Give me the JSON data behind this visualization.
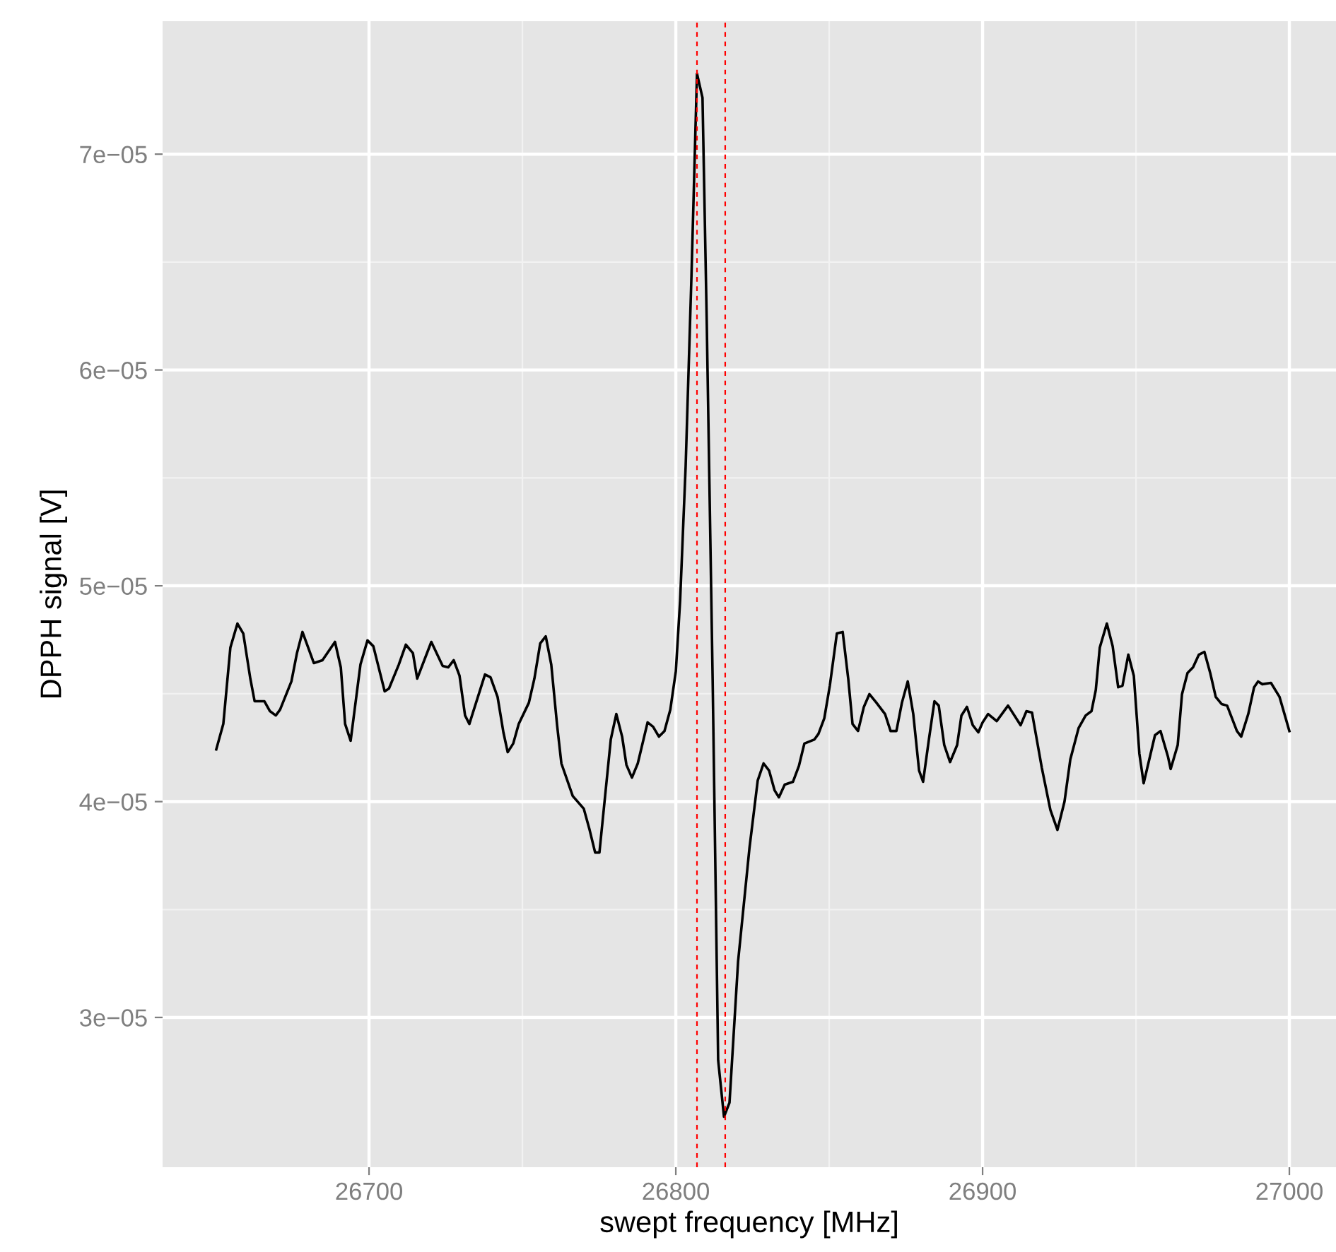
{
  "chart_data": {
    "type": "line",
    "xlabel": "swept frequency [MHz]",
    "ylabel": "DPPH signal [V]",
    "xlim": [
      26632.7,
      27015.2
    ],
    "ylim": [
      2.306e-05,
      7.616e-05
    ],
    "xticks": [
      26700,
      26800,
      26900,
      27000
    ],
    "yticks": [
      {
        "value": 3e-05,
        "label": "3e−05"
      },
      {
        "value": 4e-05,
        "label": "4e−05"
      },
      {
        "value": 5e-05,
        "label": "5e−05"
      },
      {
        "value": 6e-05,
        "label": "6e−05"
      },
      {
        "value": 7e-05,
        "label": "7e−05"
      }
    ],
    "grid": true,
    "marker": "none",
    "line_style": "solid",
    "ref_lines": [
      {
        "axis": "x",
        "value": 26806.9,
        "color": "#ff0000",
        "line_style": "dashed"
      },
      {
        "axis": "x",
        "value": 26816.1,
        "color": "#ff0000",
        "line_style": "dashed"
      }
    ],
    "series": [
      {
        "color": "#000000",
        "x": [
          26650.2,
          26652.5,
          26654.8,
          26657.1,
          26659.0,
          26661.3,
          26662.7,
          26665.9,
          26667.7,
          26669.6,
          26671.0,
          26674.7,
          26676.5,
          26678.3,
          26682.0,
          26684.8,
          26688.9,
          26690.8,
          26692.2,
          26694.0,
          26697.2,
          26699.5,
          26701.4,
          26705.1,
          26706.5,
          26709.7,
          26712.0,
          26714.3,
          26715.7,
          26720.3,
          26724.0,
          26725.8,
          26727.6,
          26729.5,
          26731.3,
          26732.7,
          26737.8,
          26739.6,
          26741.9,
          26743.8,
          26745.2,
          26747.0,
          26748.8,
          26752.1,
          26753.9,
          26755.8,
          26757.6,
          26759.4,
          26761.3,
          26762.7,
          26766.4,
          26770.0,
          26771.9,
          26773.7,
          26775.1,
          26778.8,
          26780.6,
          26782.5,
          26783.9,
          26785.7,
          26787.6,
          26790.8,
          26792.6,
          26794.5,
          26796.3,
          26798.2,
          26800.0,
          26801.4,
          26803.2,
          26805.1,
          26806.9,
          26808.7,
          26810.1,
          26812.0,
          26813.8,
          26815.7,
          26817.5,
          26820.3,
          26824.0,
          26826.7,
          26828.6,
          26830.4,
          26832.2,
          26833.6,
          26835.5,
          26838.2,
          26840.1,
          26841.9,
          26845.2,
          26846.5,
          26848.4,
          26850.2,
          26852.5,
          26854.4,
          26856.2,
          26857.6,
          26859.4,
          26861.3,
          26863.1,
          26865.4,
          26868.2,
          26870.0,
          26871.9,
          26873.7,
          26875.6,
          26877.4,
          26879.3,
          26880.6,
          26882.5,
          26884.3,
          26885.7,
          26887.5,
          26889.4,
          26891.7,
          26893.1,
          26894.9,
          26896.8,
          26898.6,
          26900.0,
          26901.8,
          26904.6,
          26908.3,
          26912.4,
          26914.3,
          26916.1,
          26919.3,
          26922.1,
          26924.4,
          26926.7,
          26928.6,
          26931.3,
          26933.6,
          26935.5,
          26936.9,
          26938.2,
          26940.5,
          26942.4,
          26944.2,
          26945.6,
          26947.5,
          26949.3,
          26951.1,
          26952.5,
          26956.2,
          26958.0,
          26960.4,
          26961.3,
          26963.6,
          26965.0,
          26966.8,
          26968.6,
          26970.5,
          26972.3,
          26974.2,
          26976.0,
          26977.9,
          26979.7,
          26982.9,
          26984.3,
          26986.6,
          26988.5,
          26989.8,
          26991.2,
          26994.0,
          26996.8,
          27000.0
        ],
        "values": [
          4.242e-05,
          4.36e-05,
          4.714e-05,
          4.825e-05,
          4.779e-05,
          4.57e-05,
          4.465e-05,
          4.465e-05,
          4.419e-05,
          4.399e-05,
          4.426e-05,
          4.557e-05,
          4.688e-05,
          4.786e-05,
          4.642e-05,
          4.655e-05,
          4.74e-05,
          4.622e-05,
          4.36e-05,
          4.282e-05,
          4.635e-05,
          4.747e-05,
          4.72e-05,
          4.511e-05,
          4.524e-05,
          4.635e-05,
          4.727e-05,
          4.688e-05,
          4.57e-05,
          4.74e-05,
          4.629e-05,
          4.622e-05,
          4.655e-05,
          4.583e-05,
          4.399e-05,
          4.36e-05,
          4.589e-05,
          4.576e-05,
          4.485e-05,
          4.321e-05,
          4.229e-05,
          4.269e-05,
          4.36e-05,
          4.458e-05,
          4.57e-05,
          4.733e-05,
          4.766e-05,
          4.635e-05,
          4.354e-05,
          4.177e-05,
          4.026e-05,
          3.967e-05,
          3.869e-05,
          3.764e-05,
          3.764e-05,
          4.288e-05,
          4.406e-05,
          4.301e-05,
          4.17e-05,
          4.111e-05,
          4.177e-05,
          4.367e-05,
          4.347e-05,
          4.301e-05,
          4.327e-05,
          4.426e-05,
          4.603e-05,
          4.93e-05,
          5.552e-05,
          6.436e-05,
          7.373e-05,
          7.261e-05,
          6.207e-05,
          4.57e-05,
          2.802e-05,
          2.54e-05,
          2.605e-05,
          3.26e-05,
          3.784e-05,
          4.098e-05,
          4.177e-05,
          4.144e-05,
          4.052e-05,
          4.02e-05,
          4.079e-05,
          4.092e-05,
          4.164e-05,
          4.269e-05,
          4.288e-05,
          4.314e-05,
          4.386e-05,
          4.537e-05,
          4.779e-05,
          4.786e-05,
          4.57e-05,
          4.36e-05,
          4.327e-05,
          4.439e-05,
          4.498e-05,
          4.458e-05,
          4.406e-05,
          4.327e-05,
          4.327e-05,
          4.458e-05,
          4.557e-05,
          4.406e-05,
          4.144e-05,
          4.092e-05,
          4.288e-05,
          4.465e-05,
          4.445e-05,
          4.262e-05,
          4.183e-05,
          4.262e-05,
          4.399e-05,
          4.439e-05,
          4.354e-05,
          4.321e-05,
          4.367e-05,
          4.406e-05,
          4.373e-05,
          4.445e-05,
          4.354e-05,
          4.419e-05,
          4.413e-05,
          4.157e-05,
          3.961e-05,
          3.869e-05,
          4e-05,
          4.196e-05,
          4.341e-05,
          4.399e-05,
          4.419e-05,
          4.517e-05,
          4.714e-05,
          4.825e-05,
          4.72e-05,
          4.53e-05,
          4.537e-05,
          4.681e-05,
          4.583e-05,
          4.223e-05,
          4.085e-05,
          4.308e-05,
          4.327e-05,
          4.21e-05,
          4.151e-05,
          4.262e-05,
          4.498e-05,
          4.596e-05,
          4.622e-05,
          4.681e-05,
          4.694e-05,
          4.596e-05,
          4.485e-05,
          4.452e-05,
          4.445e-05,
          4.327e-05,
          4.301e-05,
          4.406e-05,
          4.53e-05,
          4.557e-05,
          4.544e-05,
          4.55e-05,
          4.485e-05,
          4.327e-05
        ]
      }
    ]
  }
}
